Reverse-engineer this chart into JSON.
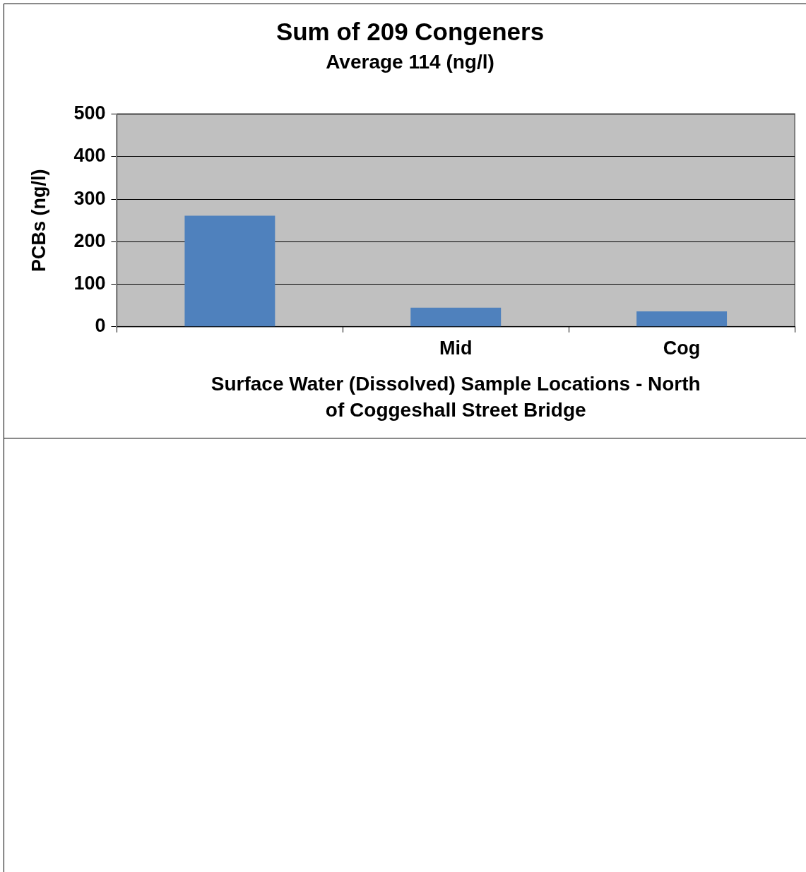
{
  "chart_data": {
    "type": "bar",
    "title": "Sum of 209 Congeners",
    "subtitle": "Average 114 (ng/l)",
    "xlabel": "Surface Water (Dissolved) Sample Locations - North of Coggeshall Street Bridge",
    "ylabel": "PCBs (ng/l)",
    "categories": [
      null,
      "Mid",
      "Cog"
    ],
    "values": [
      261,
      45,
      36
    ],
    "color": "#4f81bd",
    "ylim": [
      0,
      500
    ],
    "yticks": [
      0,
      100,
      200,
      300,
      400,
      500
    ],
    "grid": "y",
    "legend": false
  }
}
